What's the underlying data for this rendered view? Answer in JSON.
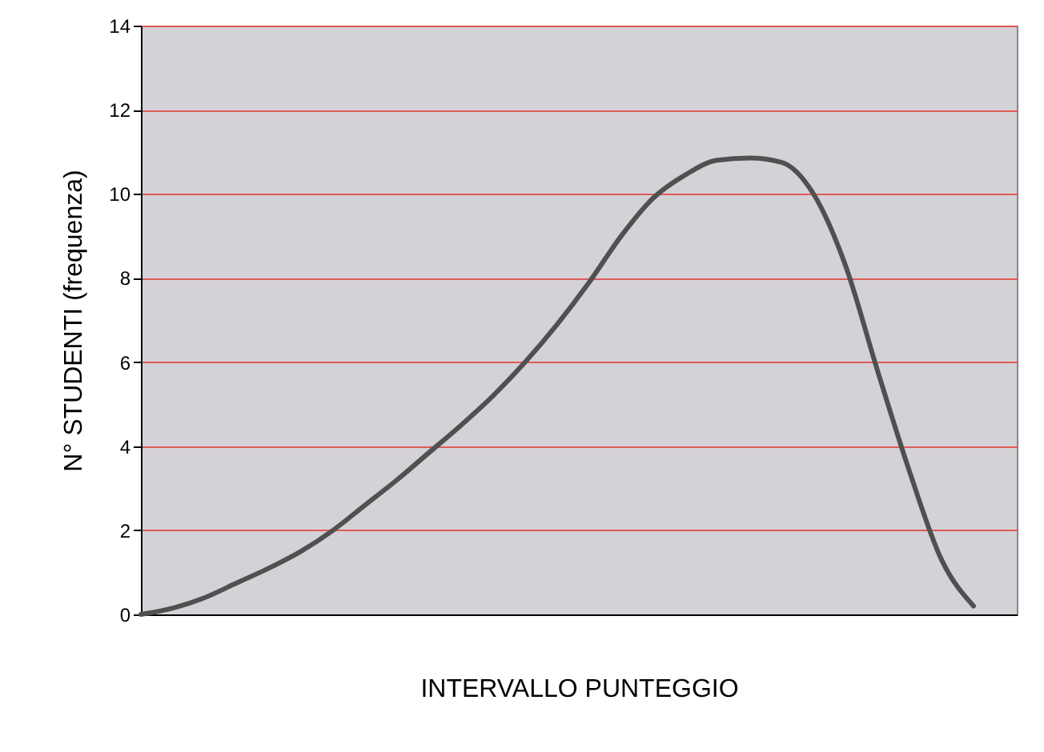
{
  "chart_data": {
    "type": "line",
    "xlabel": "INTERVALLO PUNTEGGIO",
    "ylabel": "N° STUDENTI (frequenza)",
    "categories": [
      null,
      null,
      null,
      null,
      null,
      null,
      null,
      null,
      null,
      null,
      null,
      null,
      null,
      null,
      null,
      null,
      null,
      null,
      null,
      null,
      null,
      null,
      null,
      null,
      null,
      null,
      null
    ],
    "series": [
      {
        "color": "#505050",
        "values": [
          0,
          0.15,
          0.4,
          0.75,
          1.1,
          1.5,
          2.0,
          2.6,
          3.2,
          3.85,
          4.5,
          5.2,
          6.0,
          6.9,
          7.9,
          9.0,
          9.9,
          10.45,
          10.8,
          10.85,
          10.75,
          10.0,
          8.3,
          5.8,
          3.4,
          1.3,
          0.2
        ]
      }
    ],
    "ylim": [
      0,
      14
    ],
    "yticks": [
      0,
      2,
      4,
      6,
      8,
      10,
      12,
      14
    ],
    "grid": "y",
    "tick_labels": "y",
    "marker": "none",
    "line_style": "solid"
  }
}
